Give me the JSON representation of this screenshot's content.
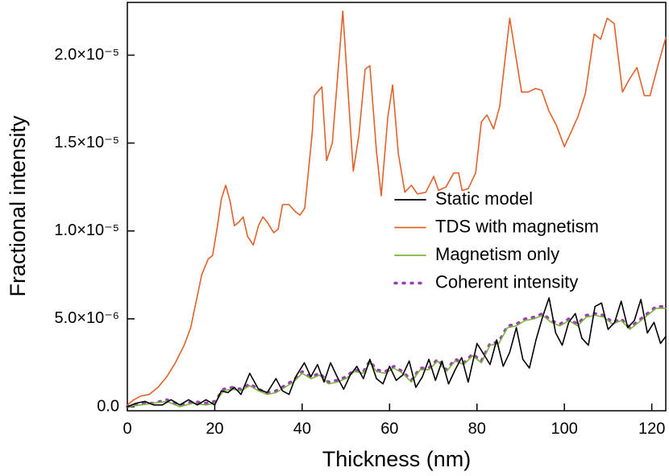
{
  "chart_data": {
    "type": "line",
    "x_label": "Thickness (nm)",
    "y_label": "Fractional intensity",
    "xlim": [
      0,
      123.2
    ],
    "ylim": [
      -2.3e-07,
      2.3e-05
    ],
    "xticks": [
      0,
      20,
      40,
      60,
      80,
      100,
      120
    ],
    "yticks": [
      {
        "value": 0,
        "label": "0.0"
      },
      {
        "value": 5e-06,
        "label": "5.0×10⁻⁶"
      },
      {
        "value": 1e-05,
        "label": "1.0×10⁻⁵"
      },
      {
        "value": 1.5e-05,
        "label": "1.5×10⁻⁵"
      },
      {
        "value": 2e-05,
        "label": "2.0×10⁻⁵"
      }
    ],
    "legend": "upper right",
    "series": [
      {
        "name": "Static model",
        "color": "#000000",
        "dash": "solid",
        "x": [
          0,
          2,
          4,
          6,
          8,
          10,
          12,
          14,
          16,
          18,
          20,
          21.5,
          23,
          24.5,
          26,
          28,
          30,
          32,
          34,
          35.5,
          37,
          38.5,
          40.5,
          42,
          43.5,
          45,
          46.5,
          48,
          49.5,
          51,
          52.5,
          54,
          55.5,
          57,
          58.5,
          60,
          61.5,
          63,
          64.5,
          66,
          67.5,
          69,
          70.5,
          72,
          73.5,
          75,
          76.5,
          78,
          80,
          81.5,
          83,
          84.5,
          86,
          87.5,
          89,
          90.5,
          92,
          93.5,
          95,
          96.5,
          98,
          99.5,
          101,
          102.5,
          104,
          105.5,
          107,
          108.5,
          110,
          111.5,
          113,
          114.5,
          116,
          117.5,
          119,
          120.5,
          122,
          123.2
        ],
        "values": [
          0,
          2e-07,
          3e-07,
          1e-07,
          1e-07,
          4e-07,
          1e-07,
          4e-07,
          1e-07,
          4e-07,
          1e-07,
          9e-07,
          8e-07,
          1.1e-06,
          7e-07,
          1.9e-06,
          1e-06,
          8e-07,
          1.6e-06,
          9e-07,
          7e-07,
          1.7e-06,
          2.5e-06,
          1.7e-06,
          2.4e-06,
          1.4e-06,
          2.5e-06,
          1.7e-06,
          1e-06,
          1.8e-06,
          2.3e-06,
          1.6e-06,
          2.7e-06,
          1.6e-06,
          1.3e-06,
          2.3e-06,
          1.5e-06,
          1.8e-06,
          2.6e-06,
          1.1e-06,
          1.7e-06,
          2.7e-06,
          1.5e-06,
          2.6e-06,
          1.3e-06,
          2.1e-06,
          2.8e-06,
          1.4e-06,
          3.6e-06,
          3e-06,
          2.4e-06,
          3.8e-06,
          2.3e-06,
          3.1e-06,
          4.5e-06,
          2.7e-06,
          2.2e-06,
          3.8e-06,
          5.1e-06,
          6.2e-06,
          4.2e-06,
          3.5e-06,
          4.8e-06,
          5.3e-06,
          3.9e-06,
          3.5e-06,
          5.7e-06,
          5.9e-06,
          4.4e-06,
          4.8e-06,
          6e-06,
          4.5e-06,
          4.9e-06,
          6.1e-06,
          4.2e-06,
          4.8e-06,
          3.6e-06,
          4e-06
        ]
      },
      {
        "name": "TDS with magnetism",
        "color": "#e0622a",
        "dash": "solid",
        "x": [
          0,
          1.5,
          3,
          5,
          7,
          9,
          11,
          13,
          14.5,
          16,
          17,
          18.5,
          19.5,
          20.5,
          21.5,
          22.5,
          23.5,
          24.5,
          25.5,
          26.5,
          27.5,
          28.8,
          30,
          31,
          32,
          33.5,
          34.5,
          35.5,
          37,
          38.4,
          39.5,
          40.6,
          42.3,
          42.8,
          44.5,
          45.6,
          46.9,
          49.3,
          51.7,
          53,
          54.4,
          55.5,
          57,
          58.1,
          59.6,
          60.7,
          62,
          63.5,
          65,
          66.4,
          68.3,
          70.1,
          71.2,
          72.9,
          74.7,
          75.8,
          76.6,
          78,
          79.7,
          81,
          82.3,
          83.8,
          85.2,
          87.5,
          90.2,
          91.7,
          93.4,
          94.8,
          96.5,
          98.2,
          100,
          101.3,
          103.1,
          104.8,
          106.8,
          108.3,
          109.8,
          111.4,
          113.3,
          114.8,
          116.6,
          118.3,
          119.6,
          121.4,
          123.2
        ],
        "values": [
          1e-07,
          4e-07,
          6e-07,
          7e-07,
          1.1e-06,
          1.7e-06,
          2.5e-06,
          3.5e-06,
          4.5e-06,
          6.3e-06,
          7.5e-06,
          8.4e-06,
          8.6e-06,
          1.01e-05,
          1.18e-05,
          1.26e-05,
          1.17e-05,
          1.03e-05,
          1.05e-05,
          1.08e-05,
          9.7e-06,
          9.2e-06,
          1.03e-05,
          1.08e-05,
          1.05e-05,
          9.9e-06,
          1.01e-05,
          1.15e-05,
          1.15e-05,
          1.11e-05,
          1.09e-05,
          1.13e-05,
          1.56e-05,
          1.77e-05,
          1.82e-05,
          1.4e-05,
          1.5e-05,
          2.25e-05,
          1.34e-05,
          1.55e-05,
          1.92e-05,
          1.94e-05,
          1.45e-05,
          1.2e-05,
          1.65e-05,
          1.83e-05,
          1.44e-05,
          1.22e-05,
          1.26e-05,
          1.21e-05,
          1.22e-05,
          1.31e-05,
          1.23e-05,
          1.25e-05,
          1.33e-05,
          1.33e-05,
          1.23e-05,
          1.24e-05,
          1.33e-05,
          1.62e-05,
          1.66e-05,
          1.58e-05,
          1.71e-05,
          2.21e-05,
          1.79e-05,
          1.79e-05,
          1.81e-05,
          1.8e-05,
          1.68e-05,
          1.6e-05,
          1.48e-05,
          1.55e-05,
          1.65e-05,
          1.78e-05,
          2.12e-05,
          2.09e-05,
          2.21e-05,
          2.18e-05,
          1.79e-05,
          1.86e-05,
          1.93e-05,
          1.77e-05,
          1.77e-05,
          1.94e-05,
          2.1e-05
        ]
      },
      {
        "name": "Magnetism only",
        "color": "#77b53b",
        "dash": "solid",
        "x": [
          0,
          3,
          6,
          9,
          12,
          15,
          18,
          20,
          22,
          24,
          26,
          28,
          30,
          32,
          34,
          36,
          38,
          40,
          42,
          44,
          46,
          48,
          50,
          52,
          54,
          55.5,
          57,
          59,
          61,
          63,
          65,
          67,
          69,
          71,
          73,
          75,
          77,
          79,
          81,
          83,
          85,
          87,
          89,
          91,
          93,
          95,
          97,
          99,
          101,
          103,
          105,
          107,
          109,
          111,
          113,
          115,
          117,
          119,
          121,
          123.2
        ],
        "values": [
          0,
          1e-07,
          2e-07,
          3e-07,
          0,
          2e-07,
          1e-07,
          2e-07,
          9e-07,
          1e-06,
          9e-07,
          1.2e-06,
          9e-07,
          7e-07,
          8e-07,
          1.1e-06,
          1.4e-06,
          1.9e-06,
          1.6e-06,
          1.8e-06,
          1.3e-06,
          1.4e-06,
          1.6e-06,
          2e-06,
          1.9e-06,
          2.5e-06,
          2e-06,
          1.9e-06,
          2.2e-06,
          1.9e-06,
          1.4e-06,
          2.1e-06,
          2.1e-06,
          2.6e-06,
          2e-06,
          2.6e-06,
          2.4e-06,
          2.9e-06,
          2.5e-06,
          3.5e-06,
          3.6e-06,
          4.5e-06,
          4.6e-06,
          4.9e-06,
          5e-06,
          5.2e-06,
          4.8e-06,
          4.6e-06,
          4.9e-06,
          4.6e-06,
          5.1e-06,
          5.2e-06,
          5.1e-06,
          4.7e-06,
          4.9e-06,
          4.4e-06,
          4.8e-06,
          5.2e-06,
          5.6e-06,
          5.6e-06
        ]
      },
      {
        "name": "Coherent intensity",
        "color": "#9b3fb5",
        "dash": "dotted",
        "x": [
          0,
          3,
          6,
          9,
          12,
          15,
          18,
          20,
          22,
          24,
          26,
          28,
          30,
          32,
          34,
          36,
          38,
          40,
          42,
          44,
          46,
          48,
          50,
          52,
          54,
          55.5,
          57,
          59,
          61,
          63,
          65,
          67,
          69,
          71,
          73,
          75,
          77,
          79,
          81,
          83,
          85,
          87,
          89,
          91,
          93,
          95,
          97,
          99,
          101,
          103,
          105,
          107,
          109,
          111,
          113,
          115,
          117,
          119,
          121,
          123.2
        ],
        "values": [
          0,
          2e-07,
          2e-07,
          4e-07,
          1e-07,
          3e-07,
          2e-07,
          3e-07,
          1e-06,
          1.1e-06,
          1e-06,
          1.3e-06,
          1e-06,
          8e-07,
          9e-07,
          1.2e-06,
          1.5e-06,
          2e-06,
          1.7e-06,
          1.9e-06,
          1.4e-06,
          1.5e-06,
          1.7e-06,
          2.1e-06,
          2e-06,
          2.6e-06,
          2.1e-06,
          2e-06,
          2.3e-06,
          2e-06,
          1.5e-06,
          2.2e-06,
          2.2e-06,
          2.7e-06,
          2.1e-06,
          2.7e-06,
          2.5e-06,
          3e-06,
          2.6e-06,
          3.6e-06,
          3.7e-06,
          4.6e-06,
          4.7e-06,
          5e-06,
          5.1e-06,
          5.3e-06,
          4.9e-06,
          4.7e-06,
          5e-06,
          4.7e-06,
          5.2e-06,
          5.3e-06,
          5.2e-06,
          4.8e-06,
          5e-06,
          4.5e-06,
          4.9e-06,
          5.3e-06,
          5.7e-06,
          5.7e-06
        ]
      }
    ]
  }
}
